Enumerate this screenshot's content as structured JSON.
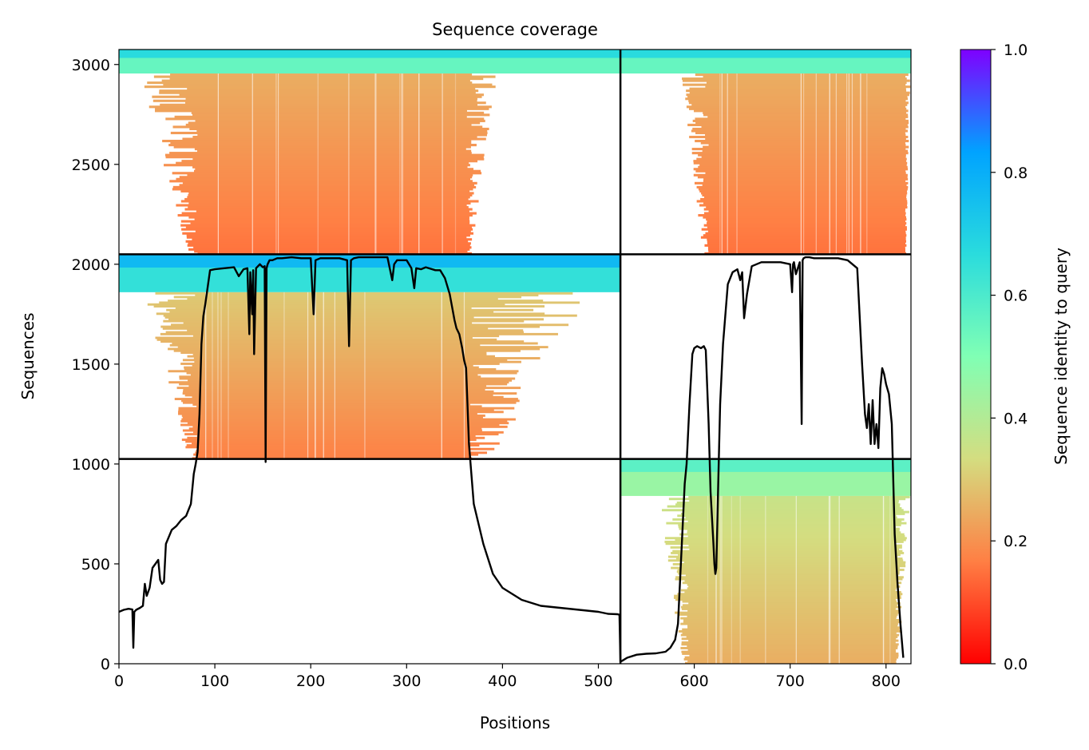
{
  "chart_data": {
    "type": "heatmap",
    "title": "Sequence coverage",
    "xlabel": "Positions",
    "ylabel": "Sequences",
    "xlim": [
      0,
      826
    ],
    "ylim": [
      0,
      3075
    ],
    "x_ticks": [
      0,
      100,
      200,
      300,
      400,
      500,
      600,
      700,
      800
    ],
    "y_ticks": [
      0,
      500,
      1000,
      1500,
      2000,
      2500,
      3000
    ],
    "colorbar": {
      "label": "Sequence identity to query",
      "range": [
        0,
        1
      ],
      "ticks": [
        "0.0",
        "0.2",
        "0.4",
        "0.6",
        "0.8",
        "1.0"
      ],
      "colormap": "rainbow",
      "stops": [
        "#ff0000",
        "#ff7f44",
        "#d4dd80",
        "#80ffb4",
        "#2adcdd",
        "#00a3ff",
        "#7f00ff"
      ]
    },
    "separators": {
      "vertical_x": [
        523
      ],
      "horizontal_y": [
        1025,
        2050
      ]
    },
    "blocks": [
      {
        "name": "block-top-left",
        "x": [
          0,
          523
        ],
        "y": [
          2050,
          3075
        ],
        "high_identity_rows": [
          2955,
          3075
        ],
        "high_identity": 0.55,
        "dense_x": [
          82,
          362
        ],
        "ragged_x": [
          22,
          395
        ],
        "low_identity_range": [
          0.15,
          0.25
        ]
      },
      {
        "name": "block-top-right",
        "x": [
          523,
          826
        ],
        "y": [
          2050,
          3075
        ],
        "high_identity_rows": [
          2955,
          3075
        ],
        "high_identity": 0.55,
        "dense_x": [
          615,
          820
        ],
        "ragged_x": [
          585,
          826
        ],
        "low_identity_range": [
          0.15,
          0.25
        ]
      },
      {
        "name": "block-mid-left",
        "x": [
          0,
          523
        ],
        "y": [
          1025,
          2050
        ],
        "high_identity_rows": [
          1860,
          2050
        ],
        "high_identity": 0.65,
        "dense_x": [
          82,
          365
        ],
        "ragged_x": [
          25,
          495
        ],
        "low_identity_range": [
          0.17,
          0.3
        ]
      },
      {
        "name": "block-bottom-right",
        "x": [
          523,
          826
        ],
        "y": [
          0,
          1025
        ],
        "high_identity_rows": [
          840,
          1025
        ],
        "high_identity": 0.45,
        "dense_x": [
          595,
          810
        ],
        "ragged_x": [
          560,
          826
        ],
        "low_identity_range": [
          0.25,
          0.36
        ]
      }
    ],
    "coverage_line": {
      "name": "Coverage",
      "x": [
        0,
        5,
        10,
        14,
        15,
        16,
        18,
        22,
        25,
        27,
        29,
        32,
        35,
        38,
        41,
        43,
        45,
        47,
        49,
        55,
        60,
        65,
        70,
        75,
        78,
        80,
        82,
        84,
        86,
        88,
        90,
        95,
        100,
        110,
        120,
        125,
        130,
        134,
        136,
        137,
        139,
        140,
        141,
        143,
        145,
        147,
        150,
        152,
        153,
        154,
        155,
        157,
        160,
        165,
        170,
        180,
        190,
        200,
        203,
        205,
        210,
        220,
        230,
        238,
        240,
        242,
        245,
        250,
        260,
        270,
        280,
        285,
        287,
        290,
        300,
        305,
        308,
        310,
        315,
        320,
        330,
        335,
        340,
        345,
        350,
        352,
        355,
        358,
        360,
        362,
        365,
        370,
        380,
        390,
        400,
        420,
        440,
        460,
        480,
        500,
        510,
        520,
        522,
        523,
        525,
        530,
        540,
        550,
        560,
        570,
        575,
        580,
        583,
        585,
        587,
        590,
        592,
        595,
        598,
        600,
        603,
        607,
        610,
        612,
        615,
        617,
        620,
        621,
        622,
        623,
        625,
        627,
        630,
        635,
        640,
        645,
        648,
        650,
        652,
        655,
        660,
        665,
        670,
        680,
        690,
        700,
        702,
        703,
        704,
        706,
        710,
        712,
        713,
        714,
        716,
        720,
        725,
        730,
        735,
        740,
        750,
        760,
        770,
        775,
        778,
        780,
        782,
        784,
        786,
        788,
        790,
        792,
        794,
        796,
        798,
        800,
        803,
        806,
        809,
        812,
        815,
        818,
        820,
        822,
        824,
        826
      ],
      "y": [
        260,
        270,
        275,
        272,
        80,
        260,
        270,
        280,
        290,
        400,
        340,
        380,
        480,
        500,
        520,
        420,
        400,
        410,
        600,
        670,
        690,
        720,
        740,
        800,
        950,
        1000,
        1060,
        1250,
        1600,
        1740,
        1800,
        1970,
        1975,
        1980,
        1985,
        1940,
        1975,
        1980,
        1650,
        1960,
        1750,
        1970,
        1550,
        1980,
        1990,
        2000,
        1985,
        1990,
        1010,
        1980,
        2000,
        2020,
        2020,
        2030,
        2030,
        2035,
        2030,
        2030,
        1750,
        2020,
        2030,
        2030,
        2030,
        2020,
        1590,
        2020,
        2030,
        2035,
        2035,
        2035,
        2035,
        1920,
        2000,
        2020,
        2020,
        1980,
        1880,
        1980,
        1975,
        1985,
        1970,
        1970,
        1930,
        1850,
        1720,
        1680,
        1650,
        1580,
        1520,
        1480,
        1100,
        800,
        600,
        450,
        380,
        320,
        290,
        280,
        270,
        260,
        250,
        248,
        245,
        10,
        15,
        30,
        45,
        50,
        52,
        60,
        80,
        120,
        200,
        400,
        600,
        900,
        1000,
        1300,
        1550,
        1580,
        1590,
        1580,
        1590,
        1570,
        1200,
        860,
        600,
        500,
        450,
        480,
        900,
        1300,
        1600,
        1900,
        1960,
        1975,
        1920,
        1960,
        1730,
        1850,
        1990,
        2000,
        2010,
        2010,
        2010,
        2000,
        1860,
        2000,
        2010,
        1950,
        2010,
        1200,
        2020,
        2030,
        2035,
        2035,
        2030,
        2030,
        2030,
        2030,
        2030,
        2020,
        1980,
        1500,
        1250,
        1180,
        1300,
        1100,
        1320,
        1100,
        1200,
        1080,
        1380,
        1480,
        1450,
        1400,
        1350,
        1200,
        650,
        400,
        200,
        30
      ]
    }
  }
}
